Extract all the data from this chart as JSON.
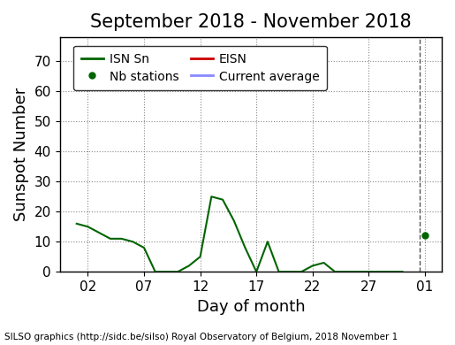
{
  "title": "September 2018 - November 2018",
  "xlabel": "Day of month",
  "ylabel": "Sunspot Number",
  "ylim": [
    0,
    78
  ],
  "yticks": [
    0,
    10,
    20,
    30,
    40,
    50,
    60,
    70
  ],
  "footer": "SILSO graphics (http://sidc.be/silso) Royal Observatory of Belgium, 2018 November 1",
  "isnsn_x": [
    1,
    2,
    3,
    4,
    5,
    6,
    7,
    8,
    9,
    10,
    11,
    12,
    13,
    14,
    15,
    16,
    17,
    18,
    19,
    20,
    21,
    22,
    23,
    24,
    25,
    26,
    27,
    28,
    29,
    30
  ],
  "isnsn_y": [
    16,
    15,
    13,
    11,
    11,
    10,
    8,
    0,
    0,
    0,
    2,
    5,
    25,
    24,
    17,
    8,
    0,
    10,
    0,
    0,
    0,
    2,
    3,
    0,
    0,
    0,
    0,
    0,
    0,
    0
  ],
  "dot_x": [
    32
  ],
  "dot_y": [
    12
  ],
  "dot_color": "#006400",
  "line_color": "#006400",
  "eisn_color": "#cc0000",
  "current_avg_color": "#8888ff",
  "vline_x": 31.5,
  "xtick_positions": [
    2,
    7,
    12,
    17,
    22,
    27,
    32
  ],
  "xtick_labels": [
    "02",
    "07",
    "12",
    "17",
    "22",
    "27",
    "01"
  ],
  "xlim": [
    -0.5,
    33.5
  ],
  "background_color": "#ffffff",
  "grid_color": "#888888",
  "legend_isnsn": "ISN Sn",
  "legend_eisn": "EISN",
  "legend_nb": "Nb stations",
  "legend_avg": "Current average"
}
